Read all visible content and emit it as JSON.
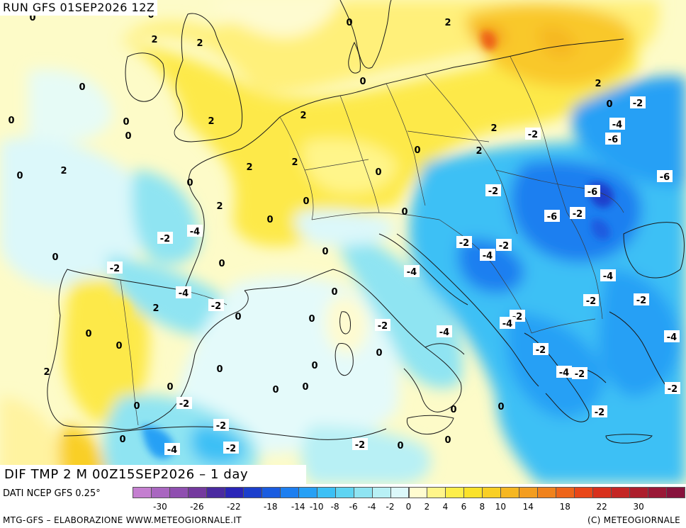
{
  "header": {
    "run_title": "RUN GFS 01SEP2026 12Z",
    "map_title": "DIF TMP 2 M 00Z15SEP2026 – 1 day"
  },
  "footer": {
    "source": "DATI NCEP GFS 0.25°",
    "credit_left": "MTG-GFS – ELABORAZIONE WWW.METEOGIORNALE.IT",
    "credit_right": "(C) METEOGIORNALE"
  },
  "legend": {
    "colors": [
      "#c47fd0",
      "#a966c0",
      "#8f4fb0",
      "#74399e",
      "#4a2aa0",
      "#2a25b8",
      "#1c3fcc",
      "#1a5ce0",
      "#1e7ff0",
      "#26a0f5",
      "#3cc0f5",
      "#5fd4f2",
      "#8fe4f2",
      "#b8f0f5",
      "#dcf8fa",
      "#fffcd0",
      "#fff58a",
      "#fdee4a",
      "#fbe22a",
      "#f9cf25",
      "#f6b722",
      "#f39d1f",
      "#f0821c",
      "#ee6419",
      "#e94618",
      "#d8301c",
      "#c42624",
      "#ad1e2c",
      "#9a1836",
      "#87123c"
    ],
    "tick_labels": [
      "-30",
      "-26",
      "-22",
      "-18",
      "-14",
      "-10",
      "-8",
      "-6",
      "-4",
      "-2",
      "0",
      "2",
      "4",
      "6",
      "8",
      "10",
      "14",
      "18",
      "22",
      "30"
    ]
  },
  "map": {
    "labels": [
      {
        "text": "0",
        "kind": "plain"
      },
      {
        "text": "0",
        "kind": "plain"
      },
      {
        "text": "0",
        "kind": "plain"
      },
      {
        "text": "2",
        "kind": "plain"
      },
      {
        "text": "2",
        "kind": "plain"
      },
      {
        "text": "0",
        "kind": "plain"
      },
      {
        "text": "0",
        "kind": "plain"
      },
      {
        "text": "2",
        "kind": "plain"
      },
      {
        "text": "0",
        "kind": "plain"
      },
      {
        "text": "2",
        "kind": "plain"
      },
      {
        "text": "0",
        "kind": "plain"
      },
      {
        "text": "0",
        "kind": "plain"
      },
      {
        "text": "2",
        "kind": "plain"
      },
      {
        "text": "2",
        "kind": "plain"
      },
      {
        "text": "0",
        "kind": "plain"
      },
      {
        "text": "2",
        "kind": "plain"
      },
      {
        "text": "0",
        "kind": "plain"
      },
      {
        "text": "2",
        "kind": "plain"
      },
      {
        "text": "2",
        "kind": "plain"
      },
      {
        "text": "2",
        "kind": "plain"
      },
      {
        "text": "0",
        "kind": "plain"
      },
      {
        "text": "2",
        "kind": "plain"
      },
      {
        "text": "0",
        "kind": "plain"
      },
      {
        "text": "0",
        "kind": "plain"
      },
      {
        "text": "2",
        "kind": "plain"
      },
      {
        "text": "0",
        "kind": "plain"
      },
      {
        "text": "0",
        "kind": "plain"
      },
      {
        "text": "0",
        "kind": "plain"
      },
      {
        "text": "0",
        "kind": "plain"
      },
      {
        "text": "0",
        "kind": "plain"
      },
      {
        "text": "0",
        "kind": "plain"
      },
      {
        "text": "2",
        "kind": "plain"
      },
      {
        "text": "0",
        "kind": "plain"
      },
      {
        "text": "0",
        "kind": "plain"
      },
      {
        "text": "0",
        "kind": "plain"
      },
      {
        "text": "0",
        "kind": "plain"
      },
      {
        "text": "0",
        "kind": "plain"
      },
      {
        "text": "2",
        "kind": "plain"
      },
      {
        "text": "0",
        "kind": "plain"
      },
      {
        "text": "0",
        "kind": "plain"
      },
      {
        "text": "0",
        "kind": "plain"
      },
      {
        "text": "0",
        "kind": "plain"
      },
      {
        "text": "0",
        "kind": "plain"
      },
      {
        "text": "0",
        "kind": "plain"
      },
      {
        "text": "0",
        "kind": "plain"
      },
      {
        "text": "0",
        "kind": "plain"
      },
      {
        "text": "0",
        "kind": "plain"
      },
      {
        "text": "0",
        "kind": "plain"
      },
      {
        "text": "0",
        "kind": "plain"
      },
      {
        "text": "0",
        "kind": "plain"
      },
      {
        "text": "-2",
        "kind": "boxed"
      },
      {
        "text": "-2",
        "kind": "boxed"
      },
      {
        "text": "-4",
        "kind": "boxed"
      },
      {
        "text": "-6",
        "kind": "boxed"
      },
      {
        "text": "-2",
        "kind": "boxed"
      },
      {
        "text": "-6",
        "kind": "boxed"
      },
      {
        "text": "-6",
        "kind": "boxed"
      },
      {
        "text": "-2",
        "kind": "boxed"
      },
      {
        "text": "-4",
        "kind": "boxed"
      },
      {
        "text": "-6",
        "kind": "boxed"
      },
      {
        "text": "-2",
        "kind": "boxed"
      },
      {
        "text": "-2",
        "kind": "boxed"
      },
      {
        "text": "-2",
        "kind": "boxed"
      },
      {
        "text": "-4",
        "kind": "boxed"
      },
      {
        "text": "-4",
        "kind": "boxed"
      },
      {
        "text": "-2",
        "kind": "boxed"
      },
      {
        "text": "-2",
        "kind": "boxed"
      },
      {
        "text": "-4",
        "kind": "boxed"
      },
      {
        "text": "-4",
        "kind": "boxed"
      },
      {
        "text": "-2",
        "kind": "boxed"
      },
      {
        "text": "-2",
        "kind": "boxed"
      },
      {
        "text": "-2",
        "kind": "boxed"
      },
      {
        "text": "-4",
        "kind": "boxed"
      },
      {
        "text": "-2",
        "kind": "boxed"
      },
      {
        "text": "-2",
        "kind": "boxed"
      },
      {
        "text": "-4",
        "kind": "boxed"
      },
      {
        "text": "-4",
        "kind": "boxed"
      },
      {
        "text": "-4",
        "kind": "boxed"
      },
      {
        "text": "-2",
        "kind": "boxed"
      },
      {
        "text": "-2",
        "kind": "boxed"
      },
      {
        "text": "-2",
        "kind": "boxed"
      },
      {
        "text": "-2",
        "kind": "boxed"
      },
      {
        "text": "-2",
        "kind": "boxed"
      },
      {
        "text": "-4",
        "kind": "boxed"
      },
      {
        "text": "-2",
        "kind": "boxed"
      },
      {
        "text": "-2",
        "kind": "boxed"
      }
    ]
  }
}
